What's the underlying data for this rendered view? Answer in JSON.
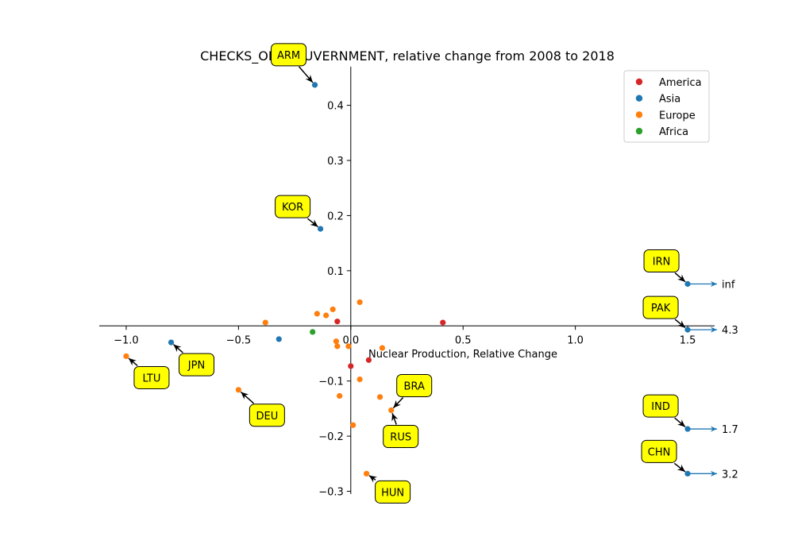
{
  "chart_data": {
    "type": "scatter",
    "title": "CHECKS_ON_GOUVERNMENT, relative change from 2008 to 2018",
    "xlabel": "Nuclear Production, Relative Change",
    "ylabel": "",
    "xlim": [
      -1.12,
      1.62
    ],
    "ylim": [
      -0.305,
      0.47
    ],
    "xticks": [
      -1.0,
      -0.5,
      0.0,
      0.5,
      1.0,
      1.5
    ],
    "xtick_labels": [
      "−1.0",
      "−0.5",
      "0.0",
      "0.5",
      "1.0",
      "1.5"
    ],
    "yticks": [
      -0.3,
      -0.2,
      -0.1,
      0.0,
      0.1,
      0.2,
      0.3,
      0.4
    ],
    "ytick_labels": [
      "−0.3",
      "−0.2",
      "−0.1",
      "0.0",
      "0.1",
      "0.2",
      "0.3",
      "0.4"
    ],
    "grid": false,
    "legend_position": "top-right",
    "series": [
      {
        "name": "America",
        "color": "#d62728",
        "points": [
          [
            0.41,
            0.006
          ],
          [
            -0.06,
            0.008
          ],
          [
            0.08,
            -0.062
          ],
          [
            0.0,
            -0.073
          ]
        ]
      },
      {
        "name": "Asia",
        "color": "#1f77b4",
        "points": [
          [
            -0.16,
            0.437
          ],
          [
            -0.135,
            0.176
          ],
          [
            -0.8,
            -0.03
          ],
          [
            -0.32,
            -0.024
          ],
          [
            1.5,
            0.076
          ],
          [
            1.5,
            -0.007
          ],
          [
            1.5,
            -0.187
          ],
          [
            1.5,
            -0.268
          ]
        ]
      },
      {
        "name": "Europe",
        "color": "#ff7f0e",
        "points": [
          [
            -1.0,
            -0.055
          ],
          [
            -0.5,
            -0.116
          ],
          [
            -0.38,
            0.006
          ],
          [
            -0.15,
            0.022
          ],
          [
            -0.11,
            0.019
          ],
          [
            -0.08,
            0.03
          ],
          [
            0.04,
            0.043
          ],
          [
            -0.065,
            -0.028
          ],
          [
            -0.06,
            -0.037
          ],
          [
            -0.01,
            -0.037
          ],
          [
            0.14,
            -0.04
          ],
          [
            0.04,
            -0.097
          ],
          [
            -0.05,
            -0.127
          ],
          [
            0.13,
            -0.129
          ],
          [
            0.18,
            -0.153
          ],
          [
            0.01,
            -0.18
          ],
          [
            0.07,
            -0.268
          ]
        ]
      },
      {
        "name": "Africa",
        "color": "#2ca02c",
        "points": [
          [
            -0.17,
            -0.011
          ]
        ]
      }
    ],
    "annotations": [
      {
        "label": "ARM",
        "x": -0.16,
        "y": 0.437
      },
      {
        "label": "KOR",
        "x": -0.135,
        "y": 0.176
      },
      {
        "label": "JPN",
        "x": -0.8,
        "y": -0.03
      },
      {
        "label": "LTU",
        "x": -1.0,
        "y": -0.055
      },
      {
        "label": "DEU",
        "x": -0.5,
        "y": -0.116
      },
      {
        "label": "BRA",
        "x": 0.18,
        "y": -0.153
      },
      {
        "label": "RUS",
        "x": 0.18,
        "y": -0.153
      },
      {
        "label": "HUN",
        "x": 0.07,
        "y": -0.268
      },
      {
        "label": "IRN",
        "x": 1.5,
        "y": 0.076,
        "offscale_value": "inf"
      },
      {
        "label": "PAK",
        "x": 1.5,
        "y": -0.007,
        "offscale_value": "4.3"
      },
      {
        "label": "IND",
        "x": 1.5,
        "y": -0.187,
        "offscale_value": "1.7"
      },
      {
        "label": "CHN",
        "x": 1.5,
        "y": -0.268,
        "offscale_value": "3.2"
      }
    ],
    "annotation_style": {
      "box_fill": "#ffff00",
      "box_stroke": "#000000",
      "arrow_color": "#000000",
      "offscale_arrow_color": "#1f77b4"
    }
  }
}
